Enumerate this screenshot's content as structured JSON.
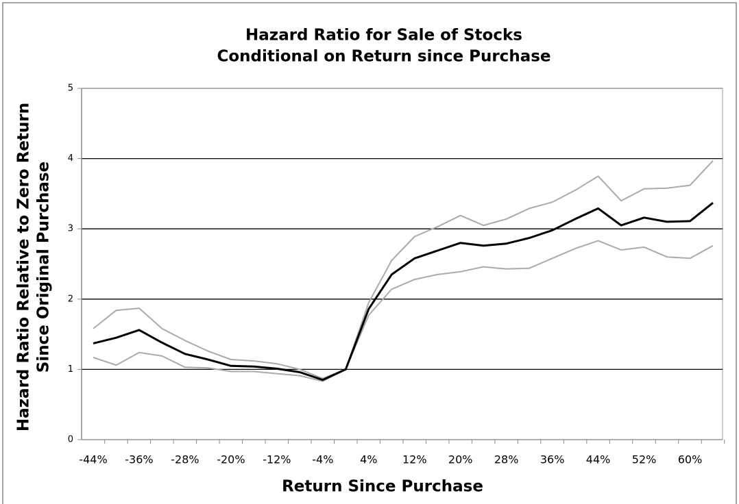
{
  "chart_data": {
    "type": "line",
    "title": [
      "Hazard Ratio for Sale of Stocks",
      "Conditional on Return since Purchase"
    ],
    "xlabel": "Return Since Purchase",
    "ylabel": [
      "Hazard Ratio Relative to Zero Return",
      "Since Original Purchase"
    ],
    "categories": [
      "-44%",
      null,
      "-36%",
      null,
      "-28%",
      null,
      "-20%",
      null,
      "-12%",
      null,
      "-4%",
      null,
      "4%",
      null,
      "12%",
      null,
      "20%",
      null,
      "28%",
      null,
      "36%",
      null,
      "44%",
      null,
      "52%",
      null,
      "60%",
      null
    ],
    "series": [
      {
        "color": "#aaaaaa",
        "values": [
          1.58,
          1.84,
          1.87,
          1.58,
          1.41,
          1.26,
          1.14,
          1.12,
          1.08,
          1.0,
          0.87,
          1.0,
          1.95,
          2.55,
          2.89,
          3.03,
          3.19,
          3.05,
          3.14,
          3.29,
          3.38,
          3.55,
          3.75,
          3.4,
          3.57,
          3.58,
          3.62,
          3.97
        ]
      },
      {
        "color": "#aaaaaa",
        "values": [
          1.17,
          1.06,
          1.24,
          1.19,
          1.03,
          1.02,
          0.97,
          0.97,
          0.94,
          0.91,
          0.83,
          1.0,
          1.77,
          2.14,
          2.28,
          2.35,
          2.39,
          2.46,
          2.43,
          2.44,
          2.58,
          2.72,
          2.83,
          2.7,
          2.74,
          2.6,
          2.58,
          2.76
        ]
      },
      {
        "color": "#000000",
        "values": [
          1.37,
          1.45,
          1.56,
          1.38,
          1.22,
          1.14,
          1.05,
          1.04,
          1.01,
          0.96,
          0.85,
          1.0,
          1.86,
          2.35,
          2.58,
          2.69,
          2.8,
          2.76,
          2.79,
          2.87,
          2.98,
          3.14,
          3.29,
          3.05,
          3.16,
          3.1,
          3.11,
          3.37
        ]
      }
    ],
    "ylim": [
      0,
      5
    ],
    "yticks": [
      0,
      1,
      2,
      3,
      4,
      5
    ],
    "grid": true
  }
}
